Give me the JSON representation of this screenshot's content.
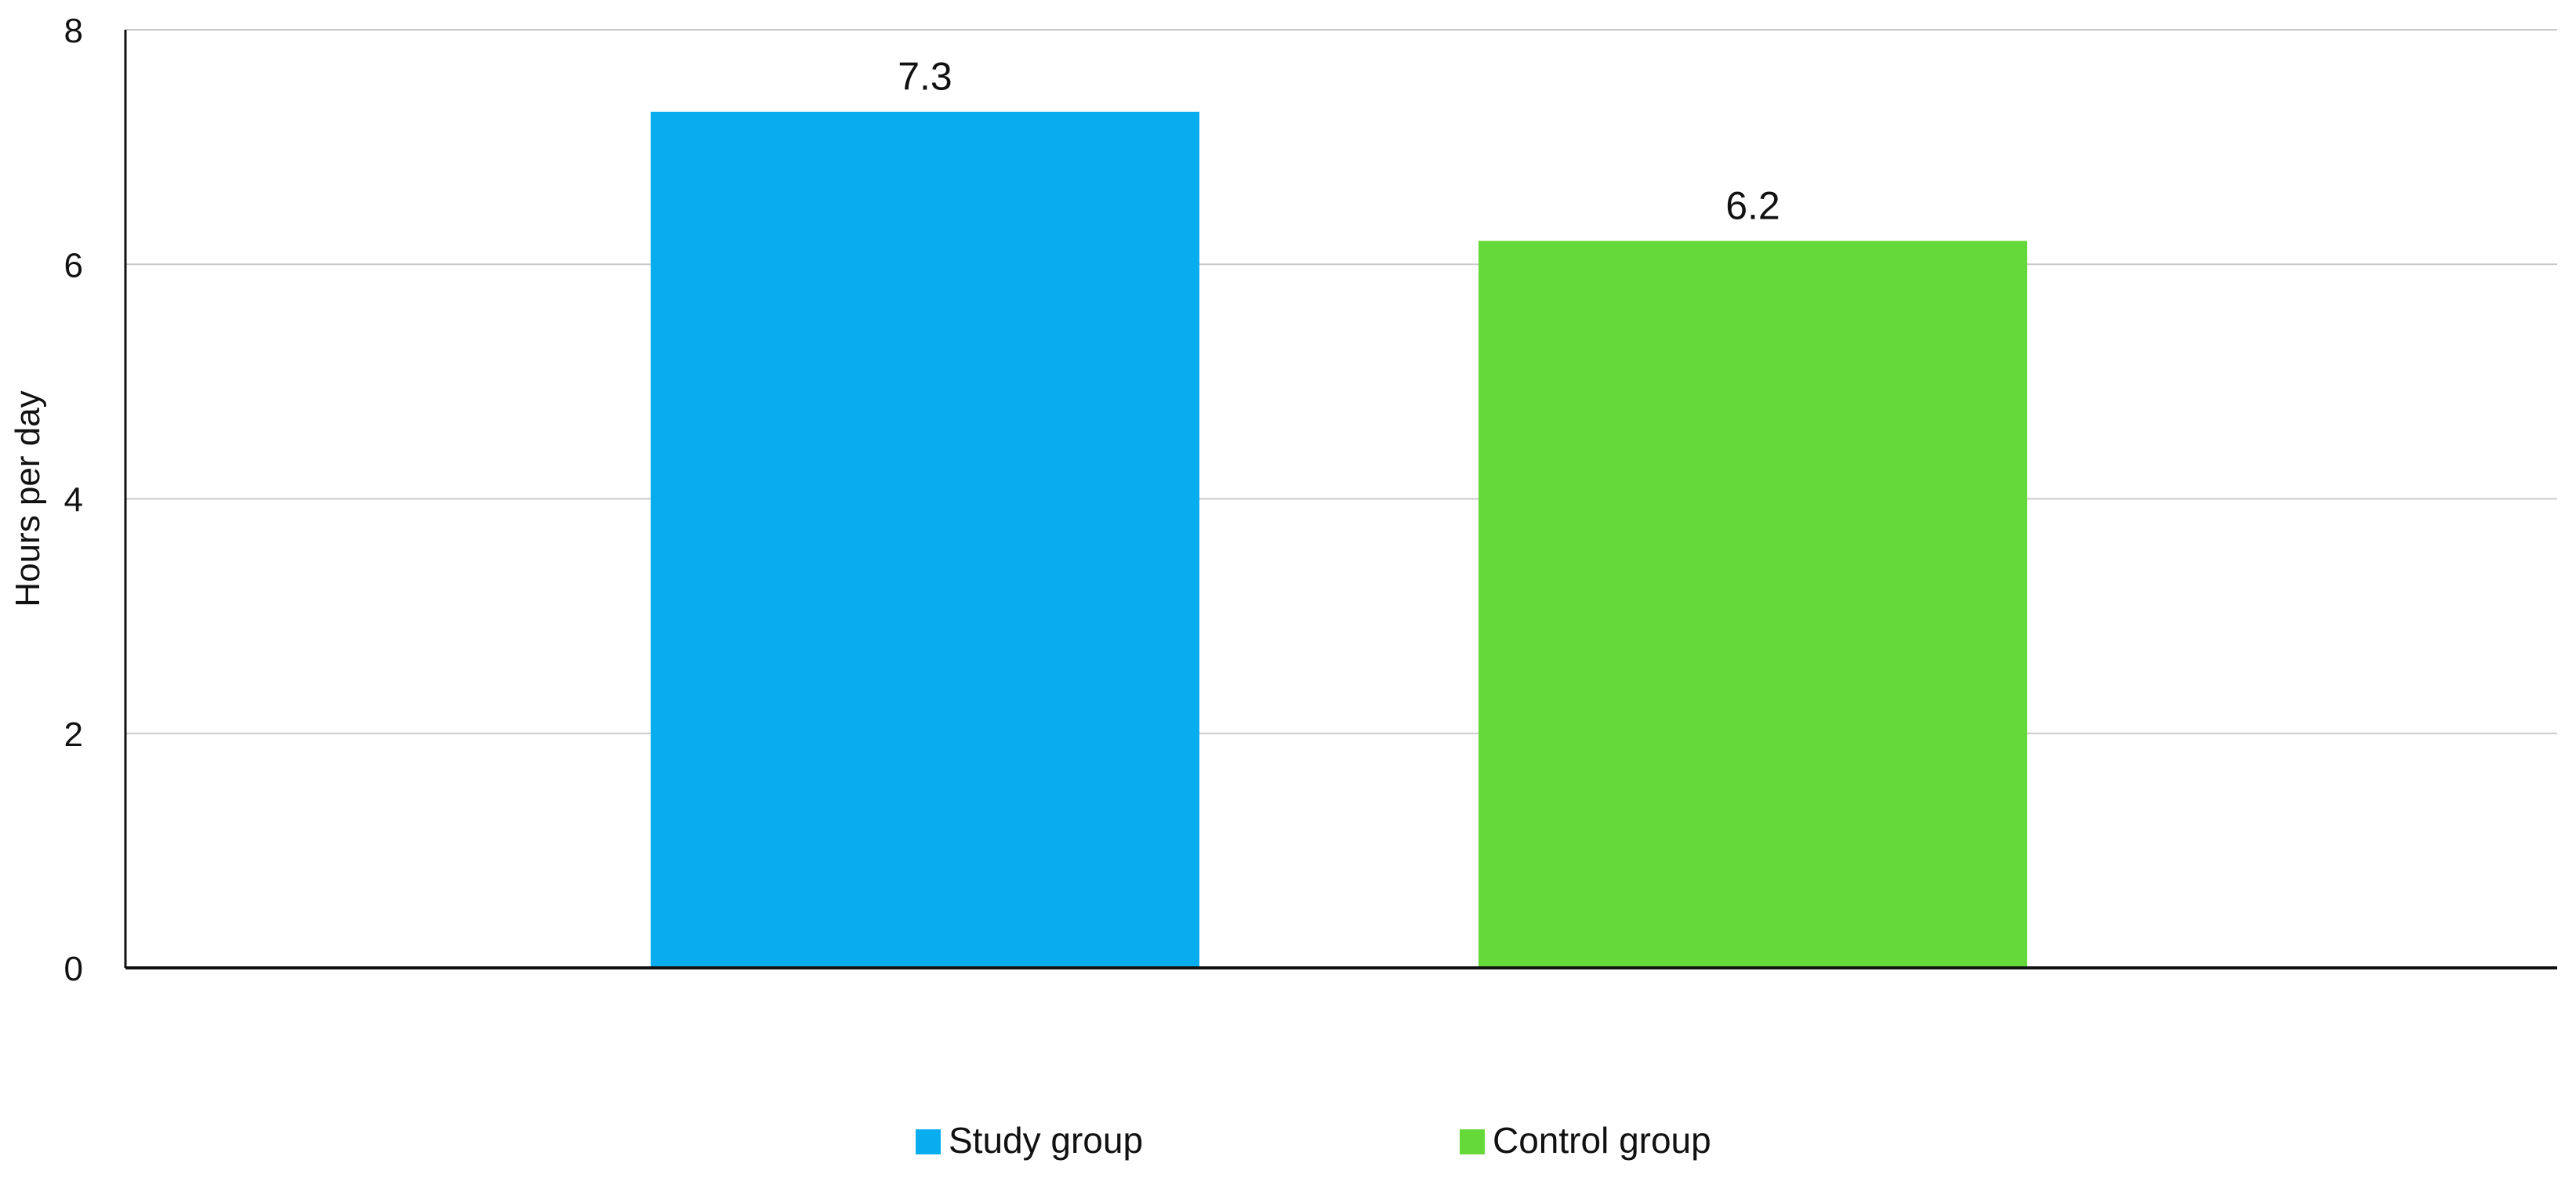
{
  "chart_data": {
    "type": "bar",
    "categories": [
      ""
    ],
    "series": [
      {
        "name": "Study group",
        "values": [
          7.3
        ],
        "color": "#08adf0"
      },
      {
        "name": "Control group",
        "values": [
          6.2
        ],
        "color": "#66d93a"
      }
    ],
    "data_labels": [
      "7.3",
      "6.2"
    ],
    "title": "",
    "xlabel": "",
    "ylabel": "Hours per day",
    "ylim": [
      0,
      8
    ],
    "yticks": [
      0,
      2,
      4,
      6,
      8
    ],
    "grid": true,
    "legend_position": "bottom"
  }
}
